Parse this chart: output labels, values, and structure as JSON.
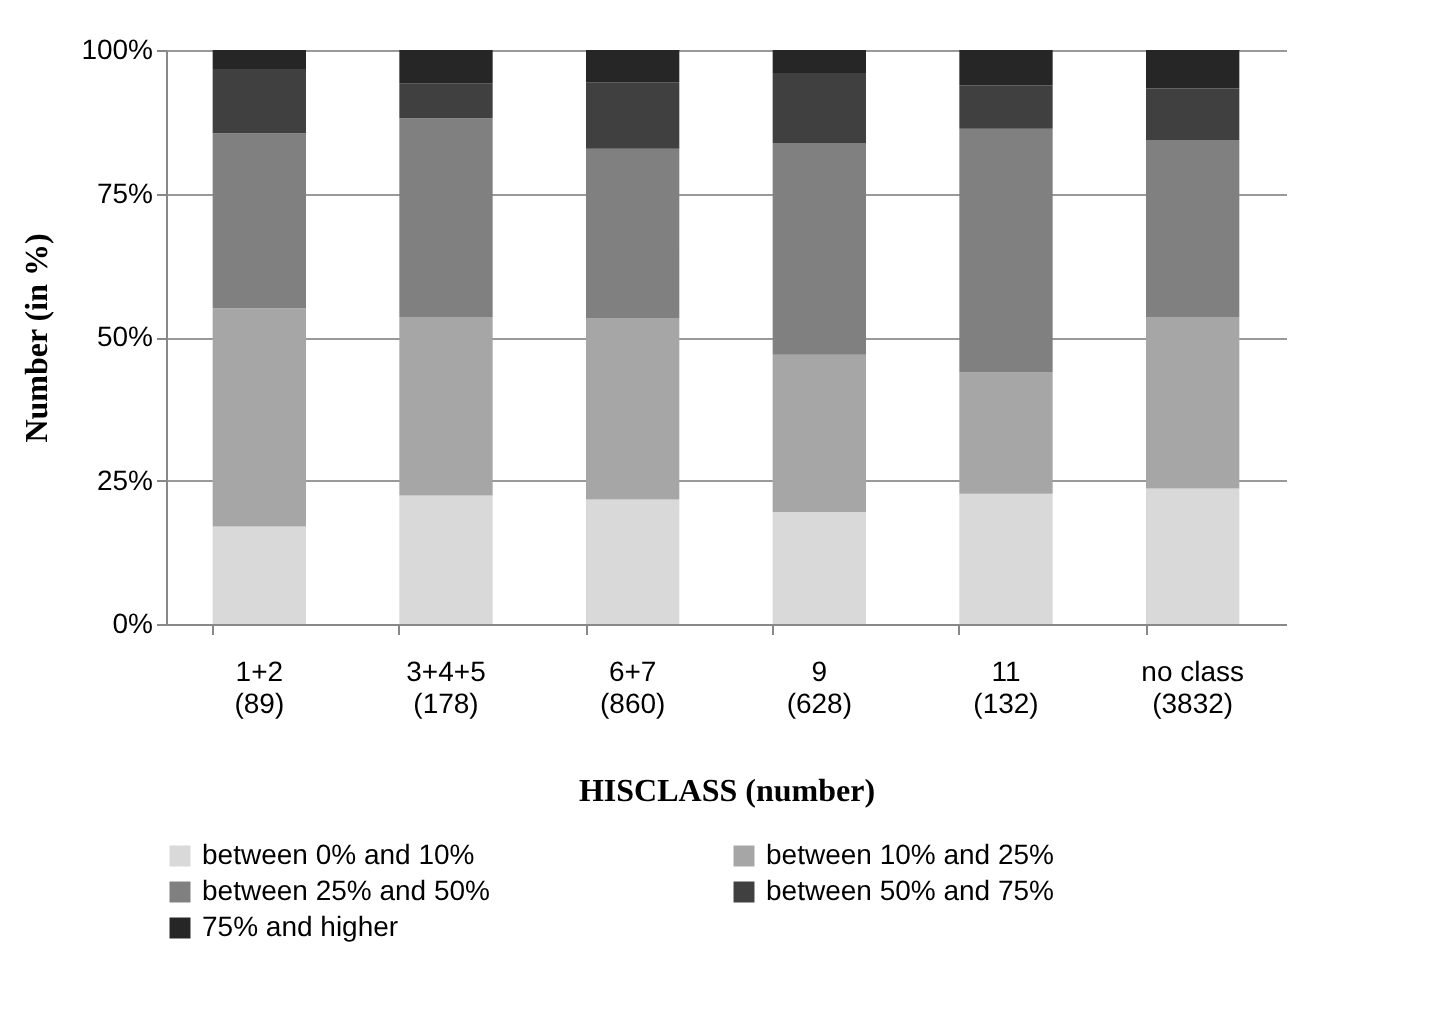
{
  "chart_data": {
    "type": "bar",
    "stacked": true,
    "xlabel": "HISCLASS (number)",
    "ylabel": "Number (in %)",
    "categories": [
      "1+2\n(89)",
      "3+4+5\n(178)",
      "6+7\n(860)",
      "9\n(628)",
      "11\n(132)",
      "no class\n(3832)"
    ],
    "series": [
      {
        "name": "between 0% and 10%",
        "color": "#d9d9d9",
        "values": [
          17.0,
          22.4,
          21.7,
          19.5,
          22.7,
          23.6
        ]
      },
      {
        "name": "between 10% and 25%",
        "color": "#a6a6a6",
        "values": [
          38.0,
          31.1,
          31.6,
          27.4,
          21.1,
          29.9
        ]
      },
      {
        "name": "between 25% and 50%",
        "color": "#808080",
        "values": [
          30.5,
          34.6,
          29.5,
          36.9,
          42.5,
          30.8
        ]
      },
      {
        "name": "between 50% and 75%",
        "color": "#404040",
        "values": [
          11.2,
          6.1,
          11.6,
          12.2,
          7.5,
          9.0
        ]
      },
      {
        "name": "75% and higher",
        "color": "#262626",
        "values": [
          3.3,
          5.8,
          5.6,
          4.0,
          6.2,
          6.7
        ]
      }
    ],
    "ylim": [
      0,
      100
    ],
    "yticks": [
      {
        "value": 0,
        "label": "0%"
      },
      {
        "value": 25,
        "label": "25%"
      },
      {
        "value": 50,
        "label": "50%"
      },
      {
        "value": 75,
        "label": "75%"
      },
      {
        "value": 100,
        "label": "100%"
      }
    ],
    "grid": "y",
    "legend": "bottom"
  }
}
